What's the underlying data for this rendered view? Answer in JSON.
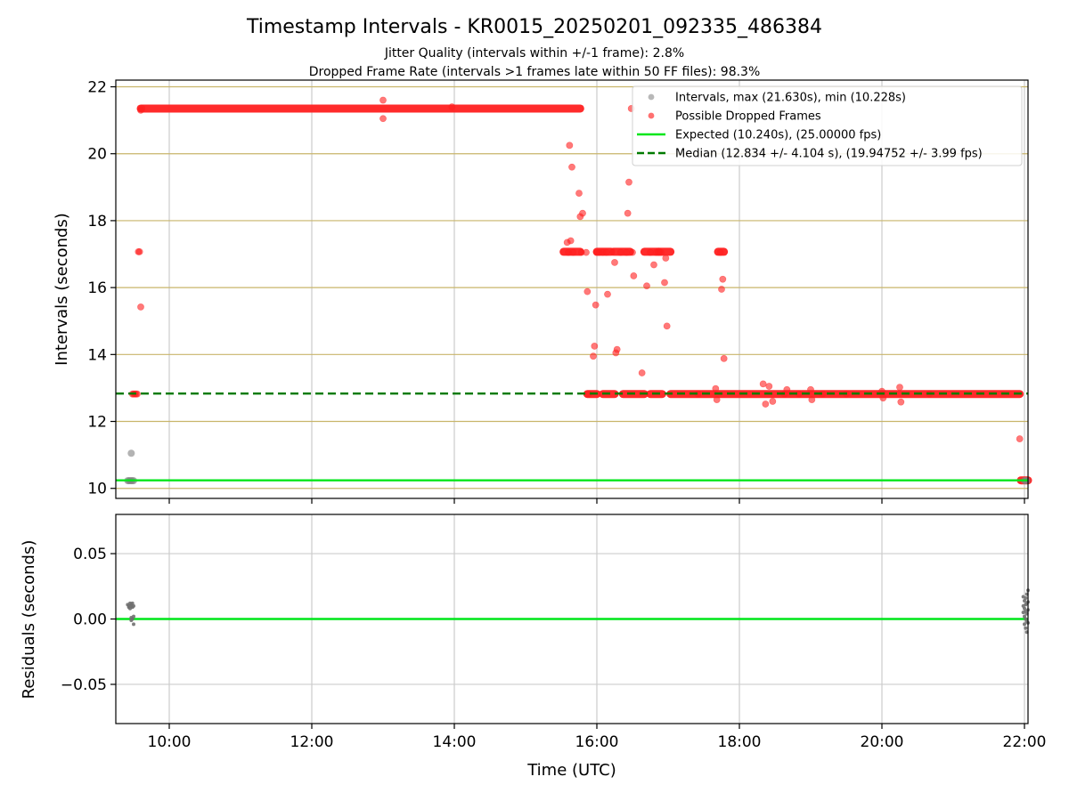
{
  "chart_data": [
    {
      "type": "scatter",
      "title": "Timestamp Intervals - KR0015_20250201_092335_486384",
      "subtitle_lines": [
        "Jitter Quality (intervals within +/-1 frame): 2.8%",
        "Dropped Frame Rate (intervals >1 frames late within 50 FF files): 98.3%"
      ],
      "xlabel": "",
      "ylabel": "Intervals (seconds)",
      "xlim": [
        "09:15",
        "22:03"
      ],
      "ylim": [
        9.7,
        22.2
      ],
      "yticks": [
        10,
        12,
        14,
        16,
        18,
        20,
        22
      ],
      "ytick_labels": [
        "10",
        "12",
        "14",
        "16",
        "18",
        "20",
        "22"
      ],
      "grid": {
        "x": true,
        "y": true,
        "y_color": "#c8b56a"
      },
      "legend_position": "top-right",
      "legend": [
        {
          "label": "Intervals, max (21.630s), min (10.228s)",
          "marker": "dot",
          "color": "#a0a0a0"
        },
        {
          "label": "Possible Dropped Frames",
          "marker": "dot",
          "color": "#ff4040"
        },
        {
          "label": "Expected (10.240s), (25.00000 fps)",
          "marker": "line",
          "color": "#00e61a"
        },
        {
          "label": "Median (12.834 +/- 4.104 s), (19.94752 +/- 3.99 fps)",
          "marker": "dashed",
          "color": "#007a00"
        }
      ],
      "reference_lines": [
        {
          "name": "expected",
          "y": 10.24,
          "color": "#00e61a",
          "style": "solid"
        },
        {
          "name": "median",
          "y": 12.834,
          "color": "#007a00",
          "style": "dashed"
        }
      ],
      "series": [
        {
          "kind": "normal",
          "color": "#808080",
          "points": [
            [
              "09:25",
              10.23
            ],
            [
              "09:26",
              10.23
            ],
            [
              "09:27",
              10.23
            ],
            [
              "09:28",
              10.23
            ],
            [
              "09:29",
              10.23
            ],
            [
              "09:30",
              10.23
            ],
            [
              "09:28",
              11.05
            ],
            [
              "22:00",
              10.23
            ],
            [
              "22:01",
              10.23
            ],
            [
              "22:02",
              10.23
            ]
          ]
        },
        {
          "kind": "dropped",
          "color": "#ff2020",
          "points": [
            [
              "09:29",
              12.82
            ],
            [
              "09:30",
              12.82
            ],
            [
              "09:31",
              12.82
            ],
            [
              "09:32",
              12.82
            ],
            [
              "09:33",
              12.82
            ],
            [
              "09:34",
              17.07
            ],
            [
              "09:35",
              17.07
            ],
            [
              "09:36",
              15.42
            ],
            [
              "09:36",
              21.3
            ],
            [
              "09:37",
              21.35
            ],
            [
              "13:00",
              21.6
            ],
            [
              "13:00",
              21.05
            ],
            [
              "13:58",
              21.4
            ],
            [
              "15:35",
              17.35
            ],
            [
              "15:36",
              17.05
            ],
            [
              "15:37",
              20.25
            ],
            [
              "15:38",
              17.4
            ],
            [
              "15:39",
              19.6
            ],
            [
              "15:40",
              17.05
            ],
            [
              "15:45",
              18.82
            ],
            [
              "15:46",
              18.12
            ],
            [
              "15:47",
              17.05
            ],
            [
              "15:48",
              18.22
            ],
            [
              "15:51",
              17.05
            ],
            [
              "15:52",
              15.88
            ],
            [
              "15:53",
              12.82
            ],
            [
              "15:57",
              13.95
            ],
            [
              "15:58",
              14.25
            ],
            [
              "15:59",
              15.48
            ],
            [
              "16:00",
              17.05
            ],
            [
              "16:02",
              17.05
            ],
            [
              "16:05",
              17.05
            ],
            [
              "16:08",
              17.05
            ],
            [
              "16:09",
              15.8
            ],
            [
              "16:15",
              16.75
            ],
            [
              "16:16",
              14.05
            ],
            [
              "16:17",
              14.15
            ],
            [
              "16:20",
              17.05
            ],
            [
              "16:25",
              17.05
            ],
            [
              "16:26",
              18.22
            ],
            [
              "16:27",
              19.15
            ],
            [
              "16:29",
              21.35
            ],
            [
              "16:30",
              17.05
            ],
            [
              "16:31",
              16.35
            ],
            [
              "16:38",
              13.45
            ],
            [
              "16:42",
              16.05
            ],
            [
              "16:45",
              17.05
            ],
            [
              "16:48",
              16.68
            ],
            [
              "16:50",
              17.05
            ],
            [
              "16:54",
              17.05
            ],
            [
              "16:57",
              16.15
            ],
            [
              "16:58",
              16.88
            ],
            [
              "16:59",
              14.85
            ],
            [
              "17:25",
              12.82
            ],
            [
              "17:40",
              12.98
            ],
            [
              "17:41",
              12.65
            ],
            [
              "17:44",
              17.05
            ],
            [
              "17:45",
              15.95
            ],
            [
              "17:46",
              16.25
            ],
            [
              "17:47",
              13.88
            ],
            [
              "18:20",
              13.12
            ],
            [
              "18:22",
              12.52
            ],
            [
              "18:25",
              13.05
            ],
            [
              "18:28",
              12.6
            ],
            [
              "18:38",
              12.82
            ],
            [
              "18:40",
              12.95
            ],
            [
              "18:50",
              12.82
            ],
            [
              "19:00",
              12.95
            ],
            [
              "19:01",
              12.65
            ],
            [
              "19:10",
              12.82
            ],
            [
              "19:30",
              12.82
            ],
            [
              "20:00",
              12.9
            ],
            [
              "20:01",
              12.7
            ],
            [
              "20:15",
              13.02
            ],
            [
              "20:16",
              12.58
            ],
            [
              "20:40",
              12.82
            ],
            [
              "21:56",
              11.48
            ]
          ],
          "bands": [
            {
              "from": "09:36",
              "to": "15:46",
              "y": 21.35
            },
            {
              "from": "15:32",
              "to": "15:46",
              "y": 17.07
            },
            {
              "from": "15:52",
              "to": "16:00",
              "y": 12.82
            },
            {
              "from": "16:00",
              "to": "16:12",
              "y": 17.07
            },
            {
              "from": "16:05",
              "to": "16:15",
              "y": 12.82
            },
            {
              "from": "16:14",
              "to": "16:28",
              "y": 17.07
            },
            {
              "from": "16:22",
              "to": "16:40",
              "y": 12.82
            },
            {
              "from": "16:40",
              "to": "16:52",
              "y": 17.07
            },
            {
              "from": "16:45",
              "to": "16:55",
              "y": 12.82
            },
            {
              "from": "16:52",
              "to": "17:02",
              "y": 17.07
            },
            {
              "from": "17:02",
              "to": "21:56",
              "y": 12.82
            },
            {
              "from": "17:42",
              "to": "17:47",
              "y": 17.07
            },
            {
              "from": "21:57",
              "to": "22:03",
              "y": 10.24
            }
          ]
        }
      ]
    },
    {
      "type": "scatter",
      "title": "",
      "xlabel": "Time (UTC)",
      "ylabel": "Residuals (seconds)",
      "xlim": [
        "09:15",
        "22:03"
      ],
      "xticks": [
        "10:00",
        "12:00",
        "14:00",
        "16:00",
        "18:00",
        "20:00",
        "22:00"
      ],
      "ylim": [
        -0.08,
        0.08
      ],
      "yticks": [
        0.05,
        0.0,
        -0.05
      ],
      "ytick_labels": [
        "0.05",
        "0.00",
        "−0.05"
      ],
      "grid": {
        "x": true,
        "y": true
      },
      "reference_lines": [
        {
          "name": "zero",
          "y": 0.0,
          "color": "#00e61a",
          "style": "solid"
        }
      ],
      "series": [
        {
          "kind": "residual",
          "color": "#707070",
          "points": [
            [
              "09:25",
              0.011
            ],
            [
              "09:26",
              0.009
            ],
            [
              "09:26",
              0.01
            ],
            [
              "09:27",
              0.012
            ],
            [
              "09:27",
              0.008
            ],
            [
              "09:28",
              0.01
            ],
            [
              "09:28",
              0.011
            ],
            [
              "09:29",
              0.009
            ],
            [
              "09:29",
              0.012
            ],
            [
              "09:30",
              0.01
            ],
            [
              "09:28",
              0.001
            ],
            [
              "09:28",
              -0.001
            ],
            [
              "09:29",
              0.0
            ],
            [
              "09:30",
              -0.004
            ],
            [
              "09:30",
              0.002
            ],
            [
              "21:59",
              0.017
            ],
            [
              "21:59",
              0.01
            ],
            [
              "21:59",
              0.005
            ],
            [
              "22:00",
              0.014
            ],
            [
              "22:00",
              0.008
            ],
            [
              "22:00",
              0.002
            ],
            [
              "22:00",
              -0.004
            ],
            [
              "22:01",
              0.016
            ],
            [
              "22:01",
              0.011
            ],
            [
              "22:01",
              0.006
            ],
            [
              "22:01",
              0.0
            ],
            [
              "22:01",
              -0.007
            ],
            [
              "22:02",
              0.019
            ],
            [
              "22:02",
              0.012
            ],
            [
              "22:02",
              0.004
            ],
            [
              "22:02",
              -0.002
            ],
            [
              "22:02",
              -0.01
            ],
            [
              "22:03",
              0.022
            ],
            [
              "22:03",
              0.013
            ],
            [
              "22:03",
              0.007
            ],
            [
              "22:03",
              -0.003
            ]
          ]
        }
      ]
    }
  ]
}
